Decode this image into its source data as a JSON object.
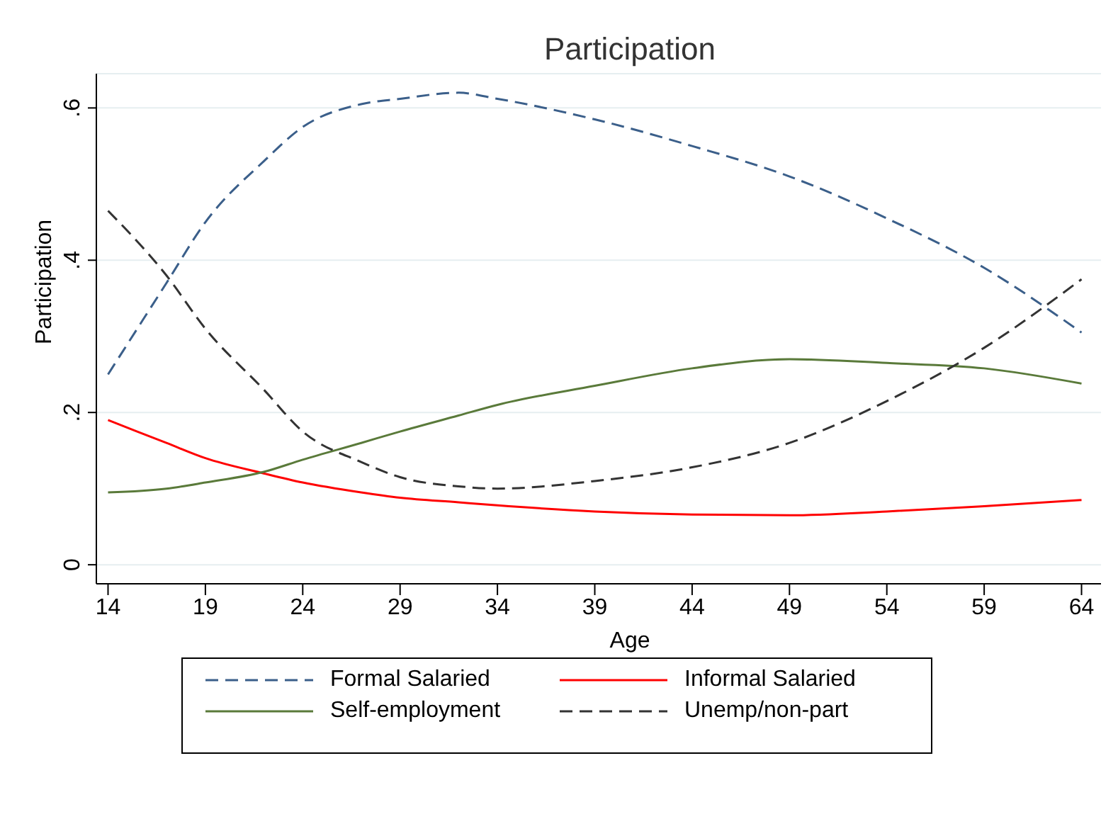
{
  "chart_data": {
    "type": "line",
    "title": "Participation",
    "xlabel": "Age",
    "ylabel": "Participation",
    "x": [
      14,
      17,
      19,
      22,
      24,
      27,
      29,
      32,
      34,
      39,
      44,
      49,
      54,
      59,
      64
    ],
    "series": [
      {
        "name": "Formal Salaried",
        "color": "#3b5f8a",
        "line_style": "dashed",
        "values": [
          0.25,
          0.37,
          0.45,
          0.53,
          0.575,
          0.605,
          0.612,
          0.62,
          0.612,
          0.585,
          0.55,
          0.51,
          0.455,
          0.39,
          0.305
        ]
      },
      {
        "name": "Informal Salaried",
        "color": "#ff0000",
        "line_style": "solid",
        "values": [
          0.19,
          0.16,
          0.14,
          0.12,
          0.108,
          0.095,
          0.088,
          0.082,
          0.078,
          0.07,
          0.066,
          0.065,
          0.07,
          0.077,
          0.085
        ]
      },
      {
        "name": "Self-employment",
        "color": "#5a7a3a",
        "line_style": "solid",
        "values": [
          0.095,
          0.1,
          0.108,
          0.122,
          0.138,
          0.16,
          0.175,
          0.196,
          0.21,
          0.235,
          0.258,
          0.27,
          0.265,
          0.258,
          0.238
        ]
      },
      {
        "name": "Unemp/non-part",
        "color": "#333333",
        "line_style": "dashed",
        "values": [
          0.465,
          0.38,
          0.31,
          0.23,
          0.175,
          0.135,
          0.115,
          0.103,
          0.1,
          0.11,
          0.128,
          0.16,
          0.215,
          0.285,
          0.375
        ]
      }
    ],
    "xlim": [
      13.4,
      65
    ],
    "xticks": [
      14,
      19,
      24,
      29,
      34,
      39,
      44,
      49,
      54,
      59,
      64
    ],
    "ylim": [
      -0.025,
      0.645
    ],
    "yticks": [
      0,
      {
        "value": 0.2,
        "label": ".2"
      },
      {
        "value": 0.4,
        "label": ".4"
      },
      {
        "value": 0.6,
        "label": ".6"
      }
    ],
    "grid": "y",
    "legend": "bottom",
    "marker": "none"
  }
}
